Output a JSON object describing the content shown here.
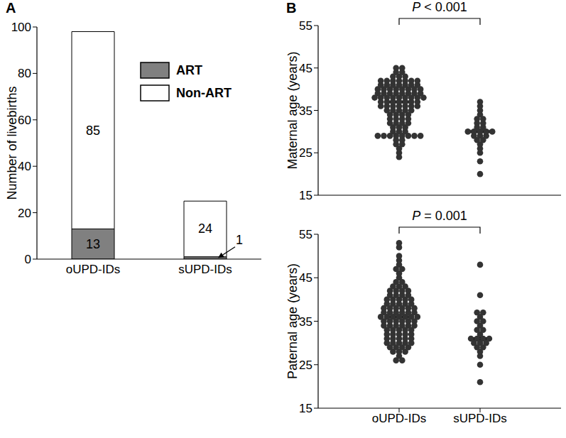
{
  "chart_data": [
    {
      "type": "bar",
      "panel": "A",
      "stacked": true,
      "data_labels": true,
      "legend": "upper center",
      "categories": [
        "oUPD-IDs",
        "sUPD-IDs"
      ],
      "series": [
        {
          "name": "ART",
          "color": "#808080",
          "values": [
            13,
            1
          ]
        },
        {
          "name": "Non-ART",
          "color": "#ffffff",
          "values": [
            85,
            24
          ]
        }
      ],
      "ylabel": "Number of livebirths",
      "ylim": [
        0,
        100
      ],
      "yticks": [
        0,
        20,
        40,
        60,
        80,
        100
      ]
    },
    {
      "type": "scatter",
      "panel": "B",
      "title": "P < 0.001",
      "tick_labels": "y",
      "color": "#333333",
      "categories": [
        "oUPD-IDs",
        "sUPD-IDs"
      ],
      "values": [
        [
          24,
          25,
          26,
          27,
          27,
          28,
          28,
          29,
          29,
          29,
          29,
          29,
          29,
          29,
          29,
          30,
          30,
          30,
          31,
          31,
          31,
          32,
          32,
          32,
          32,
          33,
          33,
          33,
          33,
          34,
          34,
          34,
          34,
          35,
          35,
          35,
          35,
          35,
          36,
          36,
          36,
          36,
          36,
          36,
          36,
          37,
          37,
          37,
          37,
          37,
          37,
          37,
          38,
          38,
          38,
          38,
          38,
          38,
          38,
          38,
          38,
          39,
          39,
          39,
          39,
          39,
          39,
          39,
          39,
          40,
          40,
          40,
          40,
          40,
          40,
          40,
          40,
          41,
          41,
          41,
          41,
          41,
          41,
          41,
          42,
          42,
          42,
          42,
          42,
          42,
          42,
          43,
          43,
          43,
          44,
          44,
          45,
          45
        ],
        [
          20,
          23,
          25,
          26,
          27,
          28,
          28,
          29,
          29,
          29,
          30,
          30,
          30,
          30,
          30,
          31,
          31,
          32,
          32,
          33,
          33,
          34,
          35,
          36,
          37
        ]
      ],
      "medians": [
        37,
        30
      ],
      "ylabel": "Maternal age (years)",
      "ylim": [
        15,
        55
      ],
      "yticks": [
        15,
        25,
        35,
        45,
        55
      ]
    },
    {
      "type": "scatter",
      "title": "P = 0.001",
      "color": "#333333",
      "categories": [
        "oUPD-IDs",
        "sUPD-IDs"
      ],
      "values": [
        [
          26,
          26,
          27,
          28,
          28,
          28,
          29,
          29,
          29,
          29,
          30,
          30,
          30,
          30,
          30,
          31,
          31,
          31,
          31,
          31,
          32,
          32,
          32,
          32,
          32,
          33,
          33,
          33,
          33,
          33,
          34,
          34,
          34,
          34,
          34,
          34,
          35,
          35,
          35,
          35,
          35,
          35,
          36,
          36,
          36,
          36,
          36,
          36,
          36,
          37,
          37,
          37,
          37,
          37,
          37,
          38,
          38,
          38,
          38,
          38,
          38,
          39,
          39,
          39,
          39,
          39,
          40,
          40,
          40,
          40,
          40,
          41,
          41,
          41,
          41,
          42,
          42,
          42,
          42,
          43,
          43,
          43,
          44,
          44,
          45,
          46,
          47,
          47,
          48,
          49,
          50,
          52,
          53
        ],
        [
          21,
          25,
          27,
          28,
          29,
          29,
          30,
          30,
          30,
          31,
          31,
          31,
          31,
          32,
          33,
          33,
          34,
          35,
          35,
          36,
          37,
          37,
          41,
          48
        ]
      ],
      "medians": [
        36,
        31
      ],
      "ylabel": "Paternal age (years)",
      "ylim": [
        15,
        55
      ],
      "yticks": [
        15,
        25,
        35,
        45,
        55
      ]
    }
  ]
}
